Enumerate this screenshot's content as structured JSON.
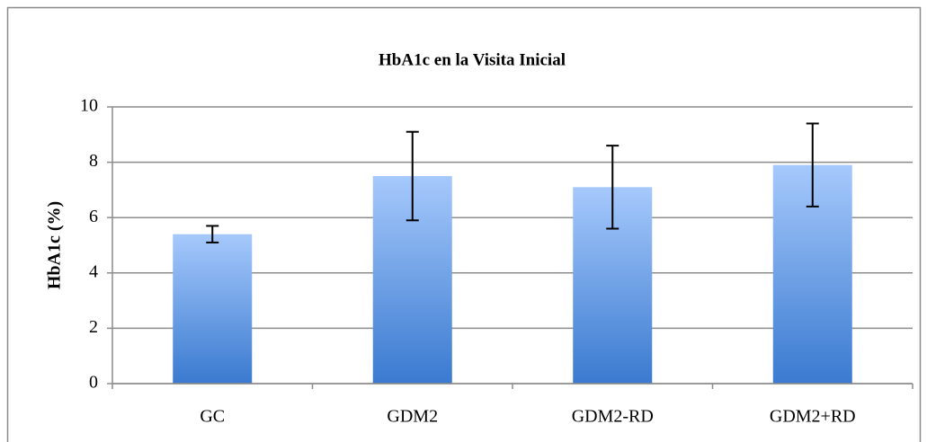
{
  "chart_data": {
    "type": "bar",
    "title": "HbA1c en la Visita Inicial",
    "y_label": "HbA1c (%)",
    "categories": [
      "GC",
      "GDM2",
      "GDM2-RD",
      "GDM2+RD"
    ],
    "values": [
      5.4,
      7.5,
      7.1,
      7.9
    ],
    "errors": [
      0.3,
      1.6,
      1.5,
      1.5
    ],
    "gradient": [
      "#a6c9fc",
      "#3a7ad0"
    ],
    "ylim": [
      0,
      10
    ],
    "yticks": [
      0,
      2,
      4,
      6,
      8,
      10
    ],
    "grid": true
  }
}
